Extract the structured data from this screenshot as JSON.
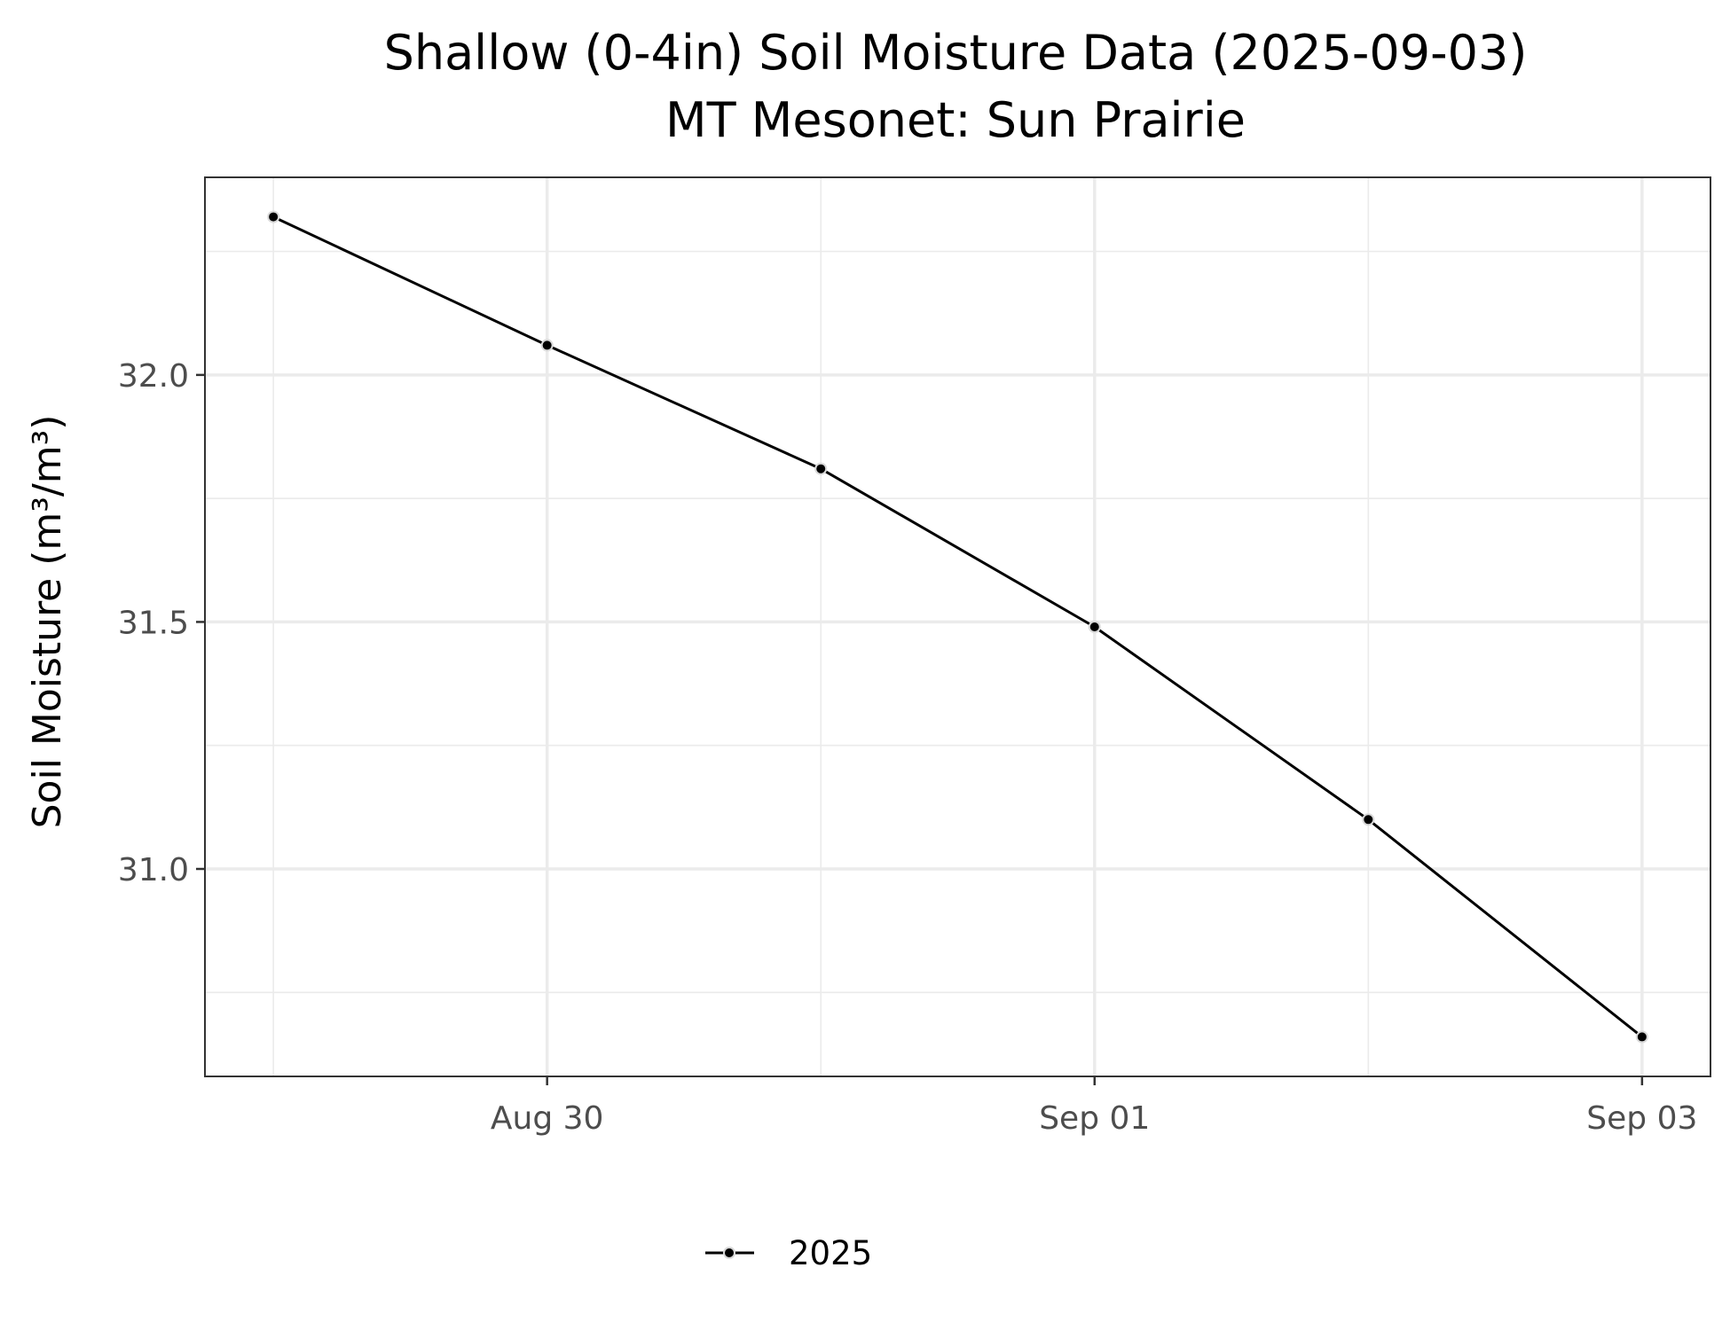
{
  "chart_data": {
    "type": "line",
    "title": "Shallow (0-4in) Soil Moisture Data (2025-09-03)",
    "subtitle": "MT Mesonet: Sun Prairie",
    "xlabel": "",
    "ylabel": "Soil Moisture (m³/m³)",
    "x": [
      "2025-08-29",
      "2025-08-30",
      "2025-08-31",
      "2025-09-01",
      "2025-09-02",
      "2025-09-03"
    ],
    "x_ticks": [
      {
        "date": "2025-08-30",
        "label": "Aug 30"
      },
      {
        "date": "2025-09-01",
        "label": "Sep 01"
      },
      {
        "date": "2025-09-03",
        "label": "Sep 03"
      }
    ],
    "y_ticks": [
      31.0,
      31.5,
      32.0
    ],
    "y_tick_labels": [
      "31.0",
      "31.5",
      "32.0"
    ],
    "y_minor_ticks": [
      30.75,
      31.25,
      31.75,
      32.25
    ],
    "xlim": [
      "2025-08-28T18:00",
      "2025-09-03T06:00"
    ],
    "ylim": [
      30.58,
      32.4
    ],
    "series": [
      {
        "name": "2025",
        "values": [
          32.32,
          32.06,
          31.81,
          31.49,
          31.1,
          30.66
        ],
        "color": "#000000"
      }
    ],
    "legend_position": "bottom",
    "grid": true,
    "theme": "bw"
  }
}
